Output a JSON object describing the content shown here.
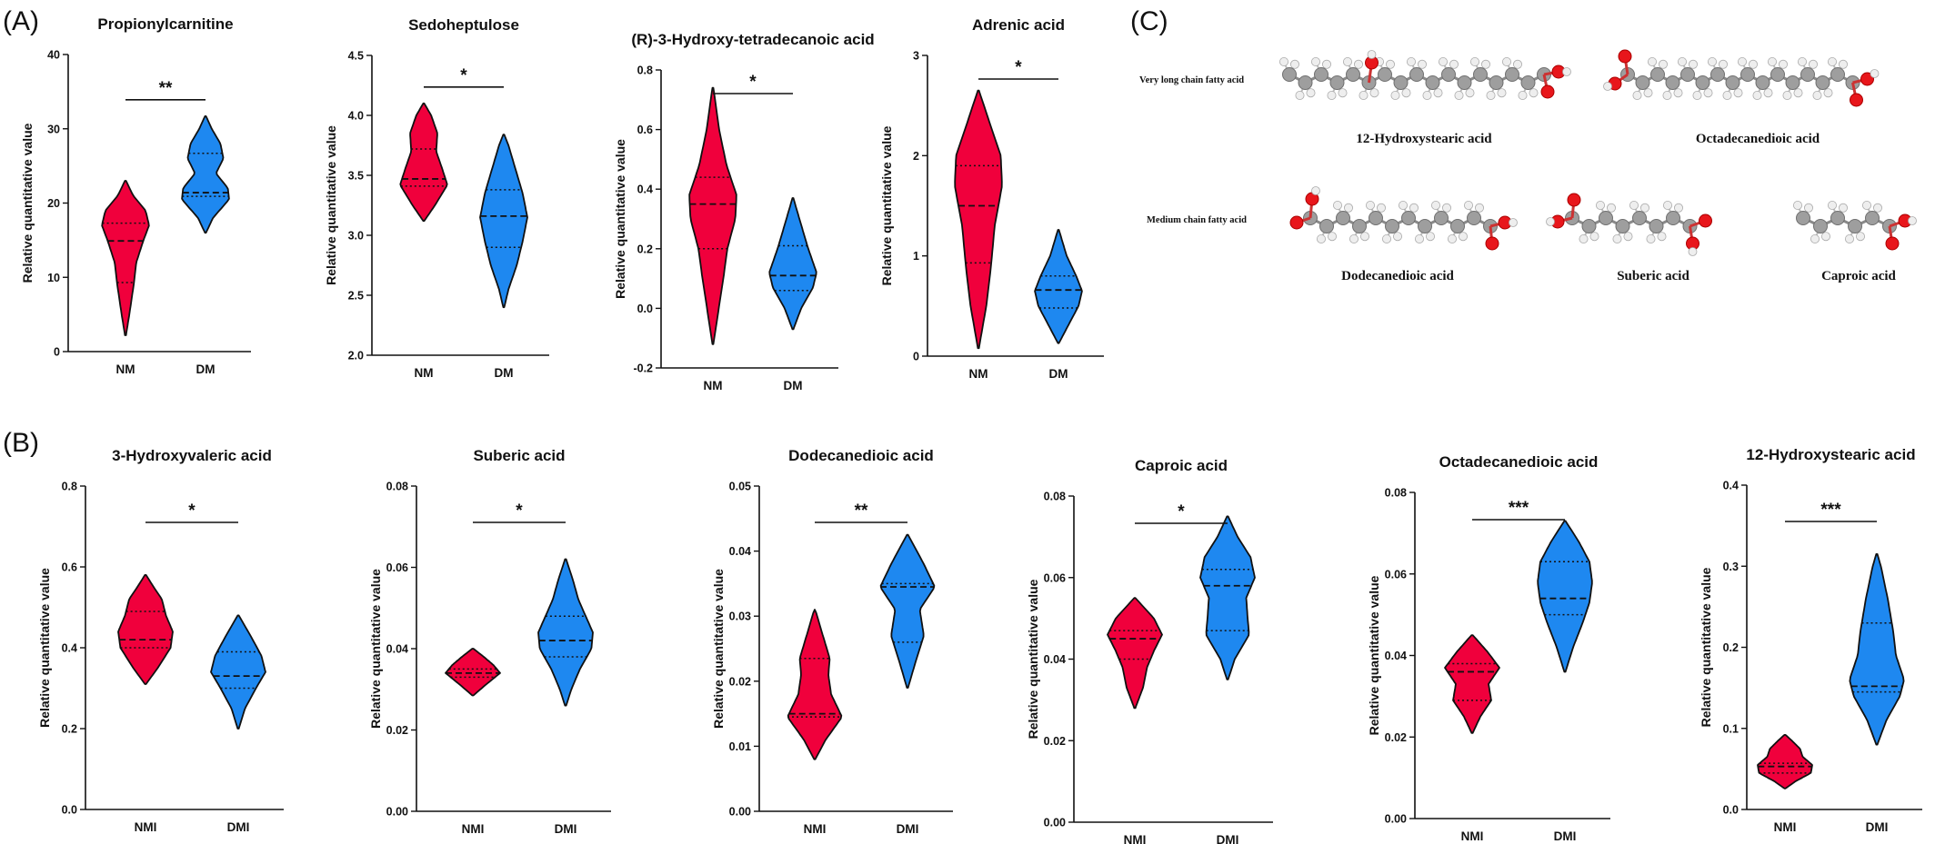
{
  "panel_labels": [
    "(A)",
    "(B)",
    "(C)"
  ],
  "colors": {
    "nm": "#f0003c",
    "dm": "#1e88f0",
    "axis": "#111111",
    "carbon": "#9e9e9e",
    "oxygen": "#e8161b",
    "hydrogen": "#eeeeee"
  },
  "chart_data": [
    {
      "type": "violin",
      "panel": "A",
      "title": "Propionylcarnitine",
      "ylabel": "Relative quantitative value",
      "ylim": [
        0,
        40
      ],
      "yticks": [
        0,
        10,
        20,
        30,
        40
      ],
      "categories": [
        "NM",
        "DM"
      ],
      "significance": "**",
      "series": [
        {
          "category": "NM",
          "min": 2.2,
          "max": 23.0,
          "q1": 9.3,
          "median": 14.9,
          "q3": 17.3,
          "profile": [
            [
              2.2,
              0.02
            ],
            [
              5,
              0.15
            ],
            [
              9,
              0.32
            ],
            [
              12,
              0.42
            ],
            [
              15,
              0.7
            ],
            [
              17,
              0.92
            ],
            [
              19,
              0.78
            ],
            [
              21,
              0.3
            ],
            [
              23,
              0.02
            ]
          ]
        },
        {
          "category": "DM",
          "min": 16.0,
          "max": 31.7,
          "q1": 20.9,
          "median": 21.4,
          "q3": 26.7,
          "profile": [
            [
              16,
              0.02
            ],
            [
              18,
              0.3
            ],
            [
              20.5,
              0.95
            ],
            [
              22,
              0.9
            ],
            [
              24,
              0.42
            ],
            [
              26,
              0.72
            ],
            [
              28,
              0.6
            ],
            [
              30,
              0.25
            ],
            [
              31.7,
              0.02
            ]
          ]
        }
      ]
    },
    {
      "type": "violin",
      "panel": "A",
      "title": "Sedoheptulose",
      "ylabel": "Relative quantitative value",
      "ylim": [
        2.0,
        4.5
      ],
      "yticks": [
        2.0,
        2.5,
        3.0,
        3.5,
        4.0,
        4.5
      ],
      "categories": [
        "NM",
        "DM"
      ],
      "significance": "*",
      "series": [
        {
          "category": "NM",
          "min": 3.12,
          "max": 4.1,
          "q1": 3.41,
          "median": 3.47,
          "q3": 3.72,
          "profile": [
            [
              3.12,
              0.02
            ],
            [
              3.25,
              0.45
            ],
            [
              3.42,
              0.95
            ],
            [
              3.55,
              0.75
            ],
            [
              3.7,
              0.5
            ],
            [
              3.85,
              0.55
            ],
            [
              4.0,
              0.3
            ],
            [
              4.1,
              0.02
            ]
          ]
        },
        {
          "category": "DM",
          "min": 2.4,
          "max": 3.84,
          "q1": 2.9,
          "median": 3.16,
          "q3": 3.38,
          "profile": [
            [
              2.4,
              0.02
            ],
            [
              2.55,
              0.2
            ],
            [
              2.75,
              0.55
            ],
            [
              2.95,
              0.8
            ],
            [
              3.15,
              1.0
            ],
            [
              3.35,
              0.8
            ],
            [
              3.55,
              0.5
            ],
            [
              3.75,
              0.2
            ],
            [
              3.84,
              0.02
            ]
          ]
        }
      ]
    },
    {
      "type": "violin",
      "panel": "A",
      "title": "(R)-3-Hydroxy-tetradecanoic acid",
      "ylabel": "Relative quantitative value",
      "ylim": [
        -0.2,
        0.8
      ],
      "yticks": [
        -0.2,
        0.0,
        0.2,
        0.4,
        0.6,
        0.8
      ],
      "categories": [
        "NM",
        "DM"
      ],
      "significance": "*",
      "series": [
        {
          "category": "NM",
          "min": -0.12,
          "max": 0.74,
          "q1": 0.2,
          "median": 0.35,
          "q3": 0.44,
          "profile": [
            [
              -0.12,
              0.02
            ],
            [
              -0.02,
              0.2
            ],
            [
              0.1,
              0.42
            ],
            [
              0.2,
              0.58
            ],
            [
              0.3,
              0.9
            ],
            [
              0.38,
              0.95
            ],
            [
              0.48,
              0.55
            ],
            [
              0.6,
              0.25
            ],
            [
              0.74,
              0.02
            ]
          ]
        },
        {
          "category": "DM",
          "min": -0.07,
          "max": 0.37,
          "q1": 0.06,
          "median": 0.11,
          "q3": 0.21,
          "profile": [
            [
              -0.07,
              0.02
            ],
            [
              0.0,
              0.35
            ],
            [
              0.07,
              0.85
            ],
            [
              0.12,
              1.0
            ],
            [
              0.2,
              0.65
            ],
            [
              0.28,
              0.35
            ],
            [
              0.37,
              0.02
            ]
          ]
        }
      ]
    },
    {
      "type": "violin",
      "panel": "A",
      "title": "Adrenic acid",
      "ylabel": "Relative quantitative value",
      "ylim": [
        0,
        3
      ],
      "yticks": [
        0,
        1,
        2,
        3
      ],
      "categories": [
        "NM",
        "DM"
      ],
      "significance": "*",
      "series": [
        {
          "category": "NM",
          "min": 0.08,
          "max": 2.65,
          "q1": 0.93,
          "median": 1.5,
          "q3": 1.9,
          "profile": [
            [
              0.08,
              0.02
            ],
            [
              0.5,
              0.3
            ],
            [
              0.9,
              0.48
            ],
            [
              1.3,
              0.62
            ],
            [
              1.7,
              0.9
            ],
            [
              2.0,
              0.85
            ],
            [
              2.35,
              0.4
            ],
            [
              2.65,
              0.02
            ]
          ]
        },
        {
          "category": "DM",
          "min": 0.13,
          "max": 1.26,
          "q1": 0.48,
          "median": 0.66,
          "q3": 0.8,
          "profile": [
            [
              0.13,
              0.02
            ],
            [
              0.3,
              0.4
            ],
            [
              0.5,
              0.85
            ],
            [
              0.65,
              1.0
            ],
            [
              0.8,
              0.75
            ],
            [
              1.0,
              0.35
            ],
            [
              1.26,
              0.02
            ]
          ]
        }
      ]
    },
    {
      "type": "violin",
      "panel": "B",
      "title": "3-Hydroxyvaleric acid",
      "ylabel": "Relative quantitative value",
      "ylim": [
        0.0,
        0.8
      ],
      "yticks": [
        0.0,
        0.2,
        0.4,
        0.6,
        0.8
      ],
      "categories": [
        "NMI",
        "DMI"
      ],
      "significance": "*",
      "series": [
        {
          "category": "NMI",
          "min": 0.31,
          "max": 0.58,
          "q1": 0.4,
          "median": 0.42,
          "q3": 0.49,
          "profile": [
            [
              0.31,
              0.02
            ],
            [
              0.35,
              0.45
            ],
            [
              0.4,
              0.92
            ],
            [
              0.44,
              1.0
            ],
            [
              0.48,
              0.75
            ],
            [
              0.52,
              0.6
            ],
            [
              0.55,
              0.3
            ],
            [
              0.58,
              0.02
            ]
          ]
        },
        {
          "category": "DMI",
          "min": 0.2,
          "max": 0.48,
          "q1": 0.3,
          "median": 0.33,
          "q3": 0.39,
          "profile": [
            [
              0.2,
              0.02
            ],
            [
              0.25,
              0.25
            ],
            [
              0.3,
              0.65
            ],
            [
              0.34,
              1.0
            ],
            [
              0.38,
              0.85
            ],
            [
              0.43,
              0.45
            ],
            [
              0.48,
              0.02
            ]
          ]
        }
      ]
    },
    {
      "type": "violin",
      "panel": "B",
      "title": "Suberic acid",
      "ylabel": "Relative quantitative value",
      "ylim": [
        0.0,
        0.08
      ],
      "yticks": [
        0.0,
        0.02,
        0.04,
        0.06,
        0.08
      ],
      "categories": [
        "NMI",
        "DMI"
      ],
      "significance": "*",
      "series": [
        {
          "category": "NMI",
          "min": 0.0285,
          "max": 0.04,
          "q1": 0.033,
          "median": 0.034,
          "q3": 0.035,
          "profile": [
            [
              0.0285,
              0.02
            ],
            [
              0.031,
              0.45
            ],
            [
              0.034,
              1.0
            ],
            [
              0.036,
              0.75
            ],
            [
              0.038,
              0.4
            ],
            [
              0.04,
              0.02
            ]
          ]
        },
        {
          "category": "DMI",
          "min": 0.026,
          "max": 0.062,
          "q1": 0.038,
          "median": 0.042,
          "q3": 0.048,
          "profile": [
            [
              0.026,
              0.02
            ],
            [
              0.03,
              0.2
            ],
            [
              0.035,
              0.5
            ],
            [
              0.04,
              0.9
            ],
            [
              0.044,
              0.95
            ],
            [
              0.048,
              0.7
            ],
            [
              0.052,
              0.45
            ],
            [
              0.057,
              0.25
            ],
            [
              0.062,
              0.02
            ]
          ]
        }
      ]
    },
    {
      "type": "violin",
      "panel": "B",
      "title": "Dodecanedioic acid",
      "ylabel": "Relative quantitative value",
      "ylim": [
        0.0,
        0.05
      ],
      "yticks": [
        0.0,
        0.01,
        0.02,
        0.03,
        0.04,
        0.05
      ],
      "categories": [
        "NMI",
        "DMI"
      ],
      "significance": "**",
      "series": [
        {
          "category": "NMI",
          "min": 0.008,
          "max": 0.031,
          "q1": 0.0145,
          "median": 0.015,
          "q3": 0.0235,
          "profile": [
            [
              0.008,
              0.02
            ],
            [
              0.011,
              0.4
            ],
            [
              0.0145,
              1.0
            ],
            [
              0.018,
              0.6
            ],
            [
              0.021,
              0.5
            ],
            [
              0.0235,
              0.55
            ],
            [
              0.027,
              0.3
            ],
            [
              0.031,
              0.02
            ]
          ]
        },
        {
          "category": "DMI",
          "min": 0.019,
          "max": 0.0425,
          "q1": 0.026,
          "median": 0.0345,
          "q3": 0.035,
          "profile": [
            [
              0.019,
              0.02
            ],
            [
              0.023,
              0.3
            ],
            [
              0.027,
              0.6
            ],
            [
              0.031,
              0.45
            ],
            [
              0.0345,
              1.0
            ],
            [
              0.038,
              0.6
            ],
            [
              0.0425,
              0.02
            ]
          ]
        }
      ]
    },
    {
      "type": "violin",
      "panel": "B",
      "title": "Caproic acid",
      "ylabel": "Relative quantitative value",
      "ylim": [
        0.0,
        0.08
      ],
      "yticks": [
        0.0,
        0.02,
        0.04,
        0.06,
        0.08
      ],
      "categories": [
        "NMI",
        "DMI"
      ],
      "significance": "*",
      "series": [
        {
          "category": "NMI",
          "min": 0.028,
          "max": 0.055,
          "q1": 0.04,
          "median": 0.045,
          "q3": 0.047,
          "profile": [
            [
              0.028,
              0.02
            ],
            [
              0.033,
              0.3
            ],
            [
              0.038,
              0.45
            ],
            [
              0.042,
              0.7
            ],
            [
              0.046,
              1.0
            ],
            [
              0.05,
              0.7
            ],
            [
              0.055,
              0.02
            ]
          ]
        },
        {
          "category": "DMI",
          "min": 0.035,
          "max": 0.075,
          "q1": 0.047,
          "median": 0.058,
          "q3": 0.062,
          "profile": [
            [
              0.035,
              0.02
            ],
            [
              0.04,
              0.25
            ],
            [
              0.046,
              0.75
            ],
            [
              0.05,
              0.7
            ],
            [
              0.055,
              0.65
            ],
            [
              0.06,
              0.95
            ],
            [
              0.065,
              0.8
            ],
            [
              0.07,
              0.35
            ],
            [
              0.075,
              0.02
            ]
          ]
        }
      ]
    },
    {
      "type": "violin",
      "panel": "B",
      "title": "Octadecanedioic acid",
      "ylabel": "Relative quantitative value",
      "ylim": [
        0.0,
        0.08
      ],
      "yticks": [
        0.0,
        0.02,
        0.04,
        0.06,
        0.08
      ],
      "categories": [
        "NMI",
        "DMI"
      ],
      "significance": "***",
      "series": [
        {
          "category": "NMI",
          "min": 0.021,
          "max": 0.045,
          "q1": 0.029,
          "median": 0.036,
          "q3": 0.038,
          "profile": [
            [
              0.021,
              0.02
            ],
            [
              0.025,
              0.3
            ],
            [
              0.029,
              0.7
            ],
            [
              0.033,
              0.6
            ],
            [
              0.037,
              1.0
            ],
            [
              0.041,
              0.55
            ],
            [
              0.045,
              0.02
            ]
          ]
        },
        {
          "category": "DMI",
          "min": 0.036,
          "max": 0.073,
          "q1": 0.05,
          "median": 0.054,
          "q3": 0.063,
          "profile": [
            [
              0.036,
              0.02
            ],
            [
              0.042,
              0.3
            ],
            [
              0.048,
              0.65
            ],
            [
              0.053,
              0.9
            ],
            [
              0.058,
              1.0
            ],
            [
              0.063,
              0.9
            ],
            [
              0.068,
              0.5
            ],
            [
              0.073,
              0.02
            ]
          ]
        }
      ]
    },
    {
      "type": "violin",
      "panel": "B",
      "title": "12-Hydroxystearic acid",
      "ylabel": "Relative quantitative value",
      "ylim": [
        0.0,
        0.4
      ],
      "yticks": [
        0.0,
        0.1,
        0.2,
        0.3,
        0.4
      ],
      "categories": [
        "NMI",
        "DMI"
      ],
      "significance": "***",
      "series": [
        {
          "category": "NMI",
          "min": 0.026,
          "max": 0.092,
          "q1": 0.045,
          "median": 0.053,
          "q3": 0.057,
          "profile": [
            [
              0.026,
              0.02
            ],
            [
              0.035,
              0.4
            ],
            [
              0.045,
              0.95
            ],
            [
              0.055,
              1.0
            ],
            [
              0.065,
              0.65
            ],
            [
              0.075,
              0.55
            ],
            [
              0.085,
              0.25
            ],
            [
              0.092,
              0.02
            ]
          ]
        },
        {
          "category": "DMI",
          "min": 0.08,
          "max": 0.315,
          "q1": 0.145,
          "median": 0.152,
          "q3": 0.23,
          "profile": [
            [
              0.08,
              0.02
            ],
            [
              0.11,
              0.35
            ],
            [
              0.14,
              0.85
            ],
            [
              0.16,
              1.0
            ],
            [
              0.19,
              0.7
            ],
            [
              0.22,
              0.6
            ],
            [
              0.26,
              0.4
            ],
            [
              0.3,
              0.15
            ],
            [
              0.315,
              0.02
            ]
          ]
        }
      ]
    }
  ],
  "molecules": {
    "class_labels": [
      "Very long chain fatty acid",
      "Medium chain fatty acid"
    ],
    "names": [
      "12-Hydroxystearic acid",
      "Octadecanedioic acid",
      "Dodecanedioic acid",
      "Suberic acid",
      "Caproic acid"
    ]
  }
}
